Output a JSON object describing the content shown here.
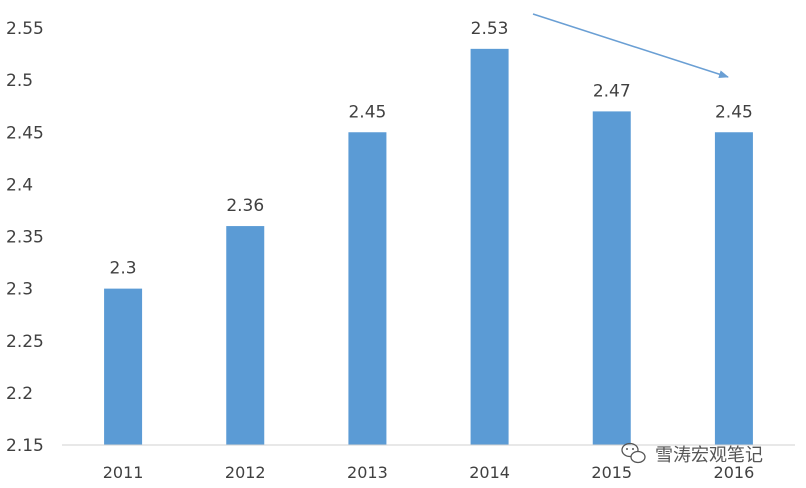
{
  "chart_data": {
    "type": "bar",
    "categories": [
      "2011",
      "2012",
      "2013",
      "2014",
      "2015",
      "2016"
    ],
    "values": [
      2.3,
      2.36,
      2.45,
      2.53,
      2.47,
      2.45
    ],
    "data_labels": [
      "2.3",
      "2.36",
      "2.45",
      "2.53",
      "2.47",
      "2.45"
    ],
    "y_ticks": [
      "2.15",
      "2.2",
      "2.25",
      "2.3",
      "2.35",
      "2.4",
      "2.45",
      "2.5",
      "2.55"
    ],
    "ylim": [
      2.15,
      2.55
    ],
    "grid": false,
    "bar_color": "#5b9bd5",
    "annotation": "downward trend arrow from 2014 to 2016"
  },
  "watermark": {
    "text": "雪涛宏观笔记",
    "icon": "wechat-icon"
  }
}
